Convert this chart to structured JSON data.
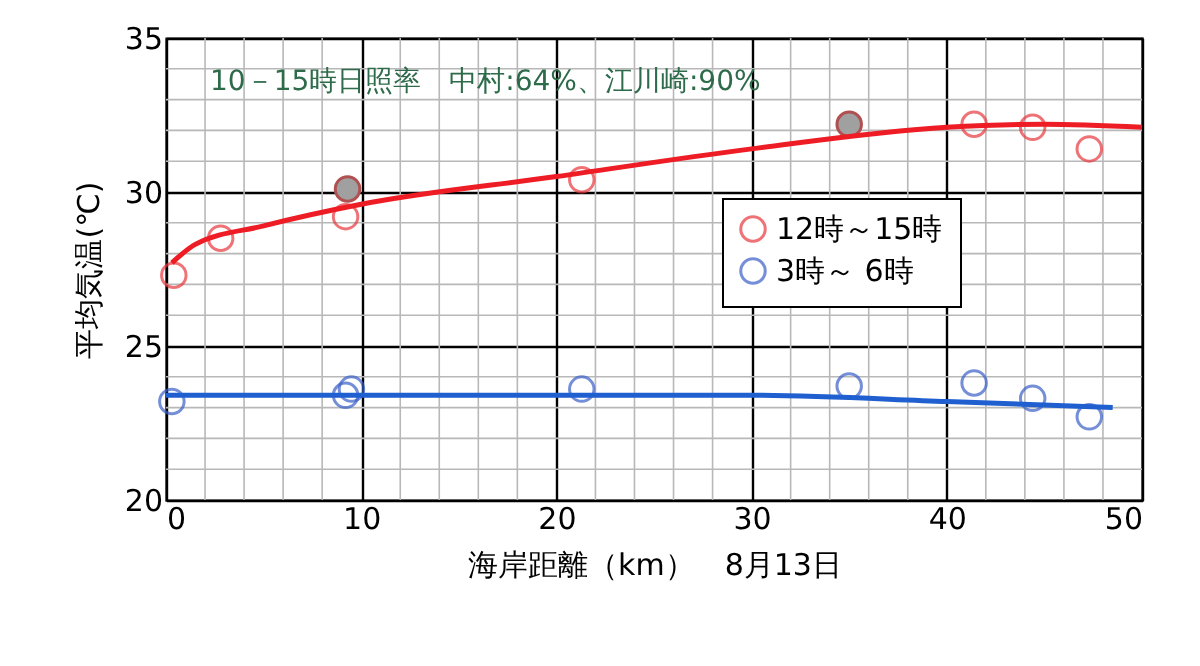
{
  "chart_data": {
    "type": "scatter",
    "xlabel": "海岸距離（km）　8月13日",
    "ylabel": "平均気温(℃)",
    "xlim": [
      0,
      50
    ],
    "ylim": [
      20,
      35
    ],
    "xticks": [
      0,
      10,
      20,
      30,
      40,
      50
    ],
    "yticks": [
      20,
      25,
      30,
      35
    ],
    "grid": true,
    "legend": "right",
    "annotations": [
      "10－15時日照率　中村:64%、江川崎:90%"
    ],
    "series": [
      {
        "name": "12時～15時",
        "color": "#e8383d",
        "marker": "circle",
        "x": [
          0.4,
          2.8,
          9.2,
          21.3,
          41.4,
          44.4,
          47.3
        ],
        "values": [
          27.3,
          28.5,
          29.2,
          30.4,
          32.2,
          32.1,
          31.4
        ]
      },
      {
        "color": "#a0a0a0",
        "marker": "circle",
        "x": [
          9.3,
          35.0
        ],
        "values": [
          30.1,
          32.2
        ]
      },
      {
        "name": "3時～ 6時",
        "color": "#3a5fc8",
        "marker": "circle",
        "x": [
          0.3,
          9.2,
          9.5,
          21.3,
          35.0,
          41.4,
          44.4,
          47.3
        ],
        "values": [
          23.2,
          23.4,
          23.6,
          23.6,
          23.7,
          23.8,
          23.3,
          22.7
        ]
      },
      {
        "color": "#ee1c24",
        "type": "line",
        "marker": "none",
        "x": [
          0.3,
          1.5,
          5,
          10,
          20,
          30,
          40,
          45,
          50
        ],
        "values": [
          27.7,
          28.3,
          28.9,
          29.6,
          30.5,
          31.4,
          32.1,
          32.2,
          32.1
        ]
      },
      {
        "color": "#1f5fd0",
        "type": "line",
        "marker": "none",
        "x": [
          0,
          30,
          40,
          48.5
        ],
        "values": [
          23.4,
          23.4,
          23.2,
          23.0
        ]
      }
    ]
  }
}
